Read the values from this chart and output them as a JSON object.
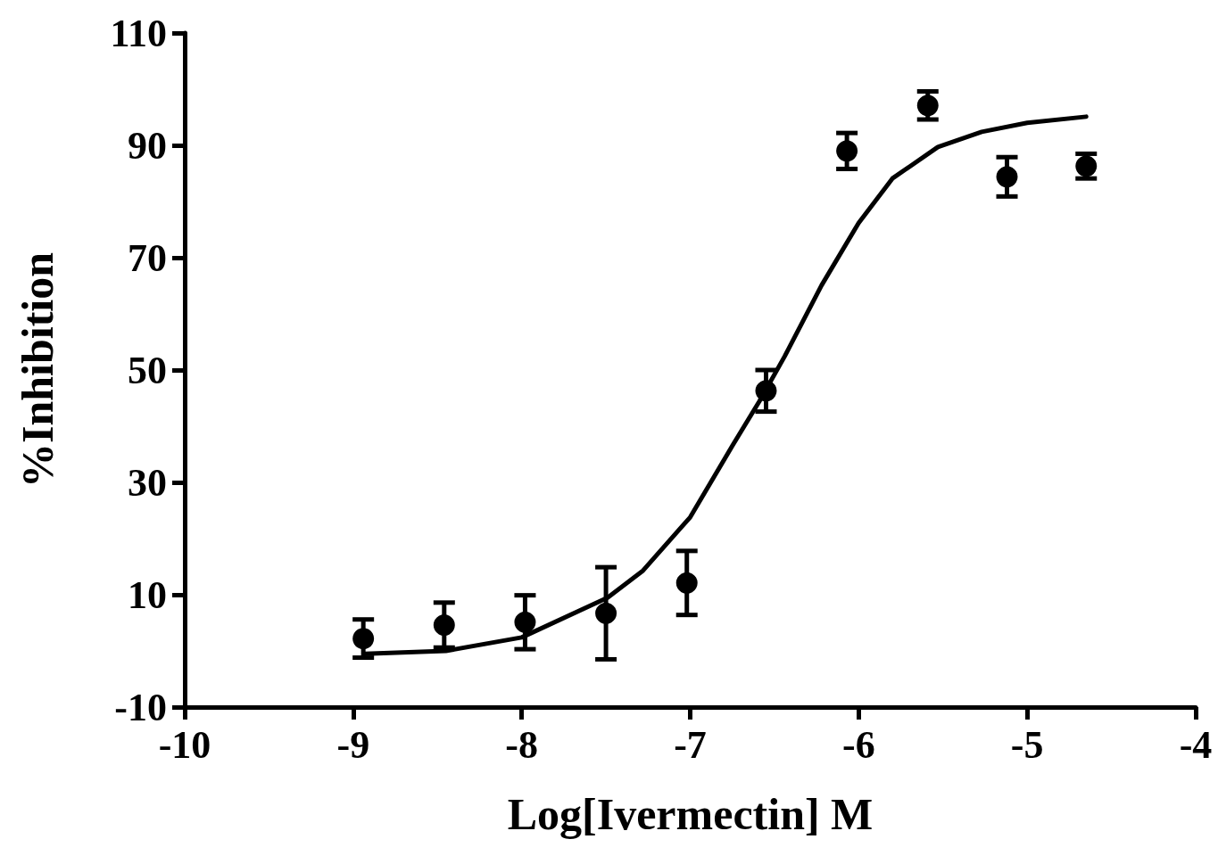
{
  "chart_data": {
    "type": "scatter",
    "xlabel": "Log[Ivermectin] M",
    "ylabel": "%Inhibition",
    "xlim": [
      -10,
      -4
    ],
    "xticks": [
      -10,
      -9,
      -8,
      -7,
      -6,
      -5,
      -4
    ],
    "ylim": [
      -10,
      110
    ],
    "yticks": [
      -10,
      10,
      30,
      50,
      70,
      90,
      110
    ],
    "grid": false,
    "series": [
      {
        "color": "#000000",
        "marker": "circle",
        "x": [
          -8.94,
          -8.46,
          -7.98,
          -7.5,
          -7.02,
          -6.55,
          -6.07,
          -5.59,
          -5.12,
          -4.65
        ],
        "values": [
          2.2,
          4.6,
          5.1,
          6.7,
          12.1,
          46.3,
          89,
          97.1,
          84.4,
          86.3
        ],
        "errors": [
          3.4,
          4,
          4.8,
          8.2,
          5.7,
          3.7,
          3.2,
          2.5,
          3.5,
          2.2
        ]
      },
      {
        "type": "line",
        "color": "#000000",
        "marker": "none",
        "line_style": "solid",
        "x": [
          -8.93,
          -8.45,
          -8,
          -7.49,
          -7.28,
          -7,
          -6.75,
          -6.59,
          -6.44,
          -6.22,
          -6,
          -5.8,
          -5.53,
          -5.27,
          -5,
          -4.65
        ],
        "values": [
          -0.5,
          0,
          2.4,
          9.5,
          14.3,
          23.8,
          36.5,
          44.4,
          52.4,
          65.1,
          76.2,
          84.1,
          89.7,
          92.4,
          94,
          95.1
        ]
      }
    ]
  }
}
